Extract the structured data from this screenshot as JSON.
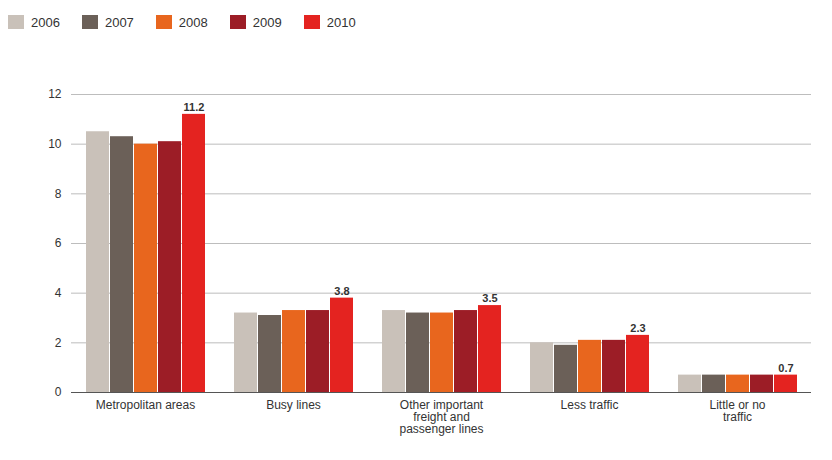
{
  "chart_data": {
    "type": "bar",
    "categories": [
      "Metropolitan areas",
      "Busy lines",
      "Other important freight and passenger lines",
      "Less traffic",
      "Little or no traffic"
    ],
    "series": [
      {
        "name": "2006",
        "color": "#c9c1b9",
        "values": [
          10.5,
          3.2,
          3.3,
          2.0,
          0.7
        ]
      },
      {
        "name": "2007",
        "color": "#6b6058",
        "values": [
          10.3,
          3.1,
          3.2,
          1.9,
          0.7
        ]
      },
      {
        "name": "2008",
        "color": "#e8661e",
        "values": [
          10.0,
          3.3,
          3.2,
          2.1,
          0.7
        ]
      },
      {
        "name": "2009",
        "color": "#9c1d26",
        "values": [
          10.1,
          3.3,
          3.3,
          2.1,
          0.7
        ]
      },
      {
        "name": "2010",
        "color": "#e42320",
        "values": [
          11.2,
          3.8,
          3.5,
          2.3,
          0.7
        ],
        "data_labels": true
      }
    ],
    "ylim": [
      0,
      12
    ],
    "yticks": [
      0,
      2,
      4,
      6,
      8,
      10,
      12
    ],
    "grid": true,
    "legend": "top"
  }
}
